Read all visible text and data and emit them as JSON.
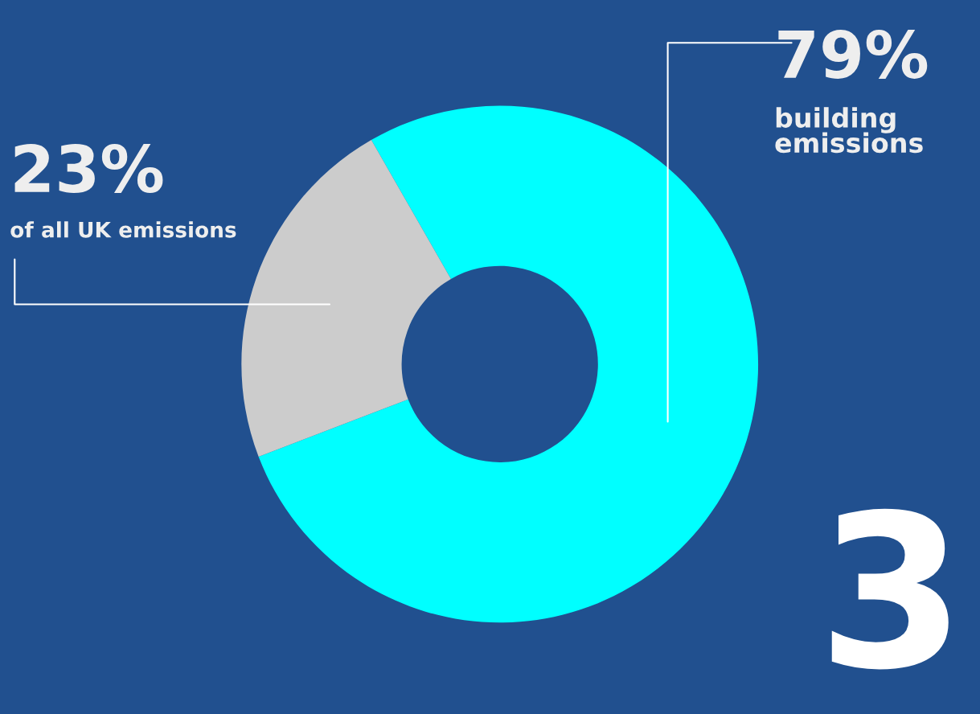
{
  "chart_data": {
    "type": "donut",
    "categories": [
      "building emissions",
      "of all UK emissions"
    ],
    "values": [
      79,
      23
    ],
    "value_labels": [
      "79%",
      "23%"
    ],
    "colors": [
      "#00ffff",
      "#cccccc"
    ],
    "annotations": [
      "3"
    ],
    "legend": false
  }
}
